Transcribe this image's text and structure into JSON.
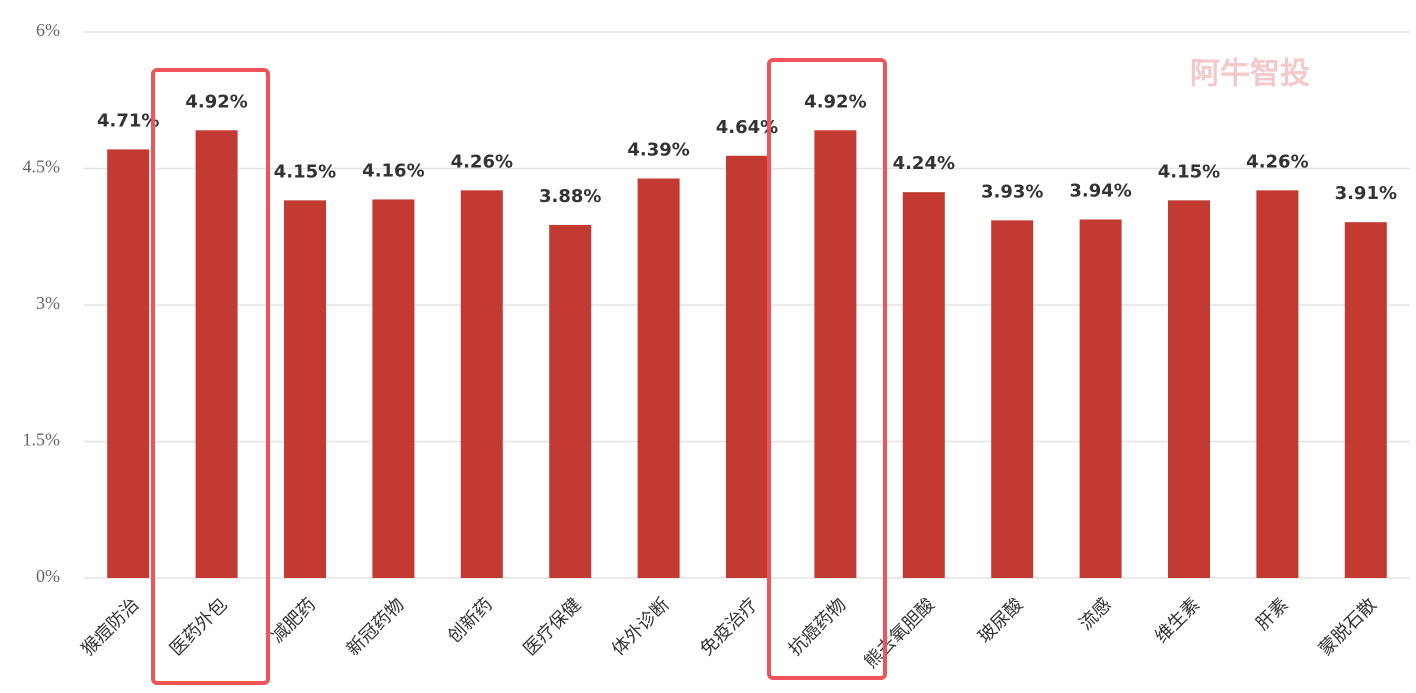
{
  "chart_data": {
    "type": "bar",
    "watermark": "阿牛智投",
    "categories": [
      "猴痘防治",
      "医药外包",
      "减肥药",
      "新冠药物",
      "创新药",
      "医疗保健",
      "体外诊断",
      "免疫治疗",
      "抗癌药物",
      "熊去氧胆酸",
      "玻尿酸",
      "流感",
      "维生素",
      "肝素",
      "蒙脱石散"
    ],
    "values": [
      4.71,
      4.92,
      4.15,
      4.16,
      4.26,
      3.88,
      4.39,
      4.64,
      4.92,
      4.24,
      3.93,
      3.94,
      4.15,
      4.26,
      3.91
    ],
    "value_labels": [
      "4.71%",
      "4.92%",
      "4.15%",
      "4.16%",
      "4.26%",
      "3.88%",
      "4.39%",
      "4.64%",
      "4.92%",
      "4.24%",
      "3.93%",
      "3.94%",
      "4.15%",
      "4.26%",
      "3.91%"
    ],
    "color": "#c23a31",
    "ylim": [
      0,
      6
    ],
    "yticks": [
      {
        "value": 0,
        "label": "0%"
      },
      {
        "value": 1.5,
        "label": "1.5%"
      },
      {
        "value": 3,
        "label": "3%"
      },
      {
        "value": 4.5,
        "label": "4.5%"
      },
      {
        "value": 6,
        "label": "6%"
      }
    ],
    "grid": true
  }
}
